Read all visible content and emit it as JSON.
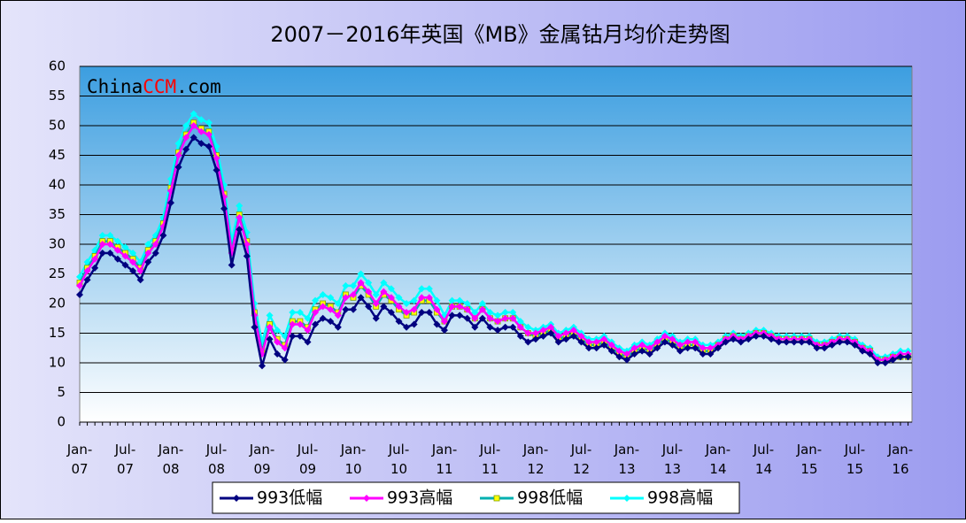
{
  "chart_data": {
    "type": "line",
    "title": "2007－2016年英国《MB》金属钴月均价走势图",
    "watermark": [
      "China",
      "CCM",
      ".com"
    ],
    "categories": [
      "Jan-07",
      null,
      null,
      null,
      null,
      null,
      "Jul-07",
      null,
      null,
      null,
      null,
      null,
      "Jan-08",
      null,
      null,
      null,
      null,
      null,
      "Jul-08",
      null,
      null,
      null,
      null,
      null,
      "Jan-09",
      null,
      null,
      null,
      null,
      null,
      "Jul-09",
      null,
      null,
      null,
      null,
      null,
      "Jan-10",
      null,
      null,
      null,
      null,
      null,
      "Jul-10",
      null,
      null,
      null,
      null,
      null,
      "Jan-11",
      null,
      null,
      null,
      null,
      null,
      "Jul-11",
      null,
      null,
      null,
      null,
      null,
      "Jan-12",
      null,
      null,
      null,
      null,
      null,
      "Jul-12",
      null,
      null,
      null,
      null,
      null,
      "Jan-13",
      null,
      null,
      null,
      null,
      null,
      "Jul-13",
      null,
      null,
      null,
      null,
      null,
      "Jan-14",
      null,
      null,
      null,
      null,
      null,
      "Jul-14",
      null,
      null,
      null,
      null,
      null,
      "Jan-15",
      null,
      null,
      null,
      null,
      null,
      "Jul-15",
      null,
      null,
      null,
      null,
      null,
      "Jan-16",
      null
    ],
    "series": [
      {
        "name": "993低幅",
        "color": "#000080",
        "marker_color": "#000080",
        "values": [
          21.5,
          24,
          26,
          28.5,
          28.5,
          27.5,
          26.5,
          25.5,
          24,
          27,
          28.5,
          31.5,
          37,
          43,
          46,
          48,
          47,
          46.5,
          42.5,
          36,
          26.5,
          32.5,
          28,
          16,
          9.5,
          14,
          11.5,
          10.5,
          14.5,
          14.5,
          13.5,
          16.5,
          17.5,
          17,
          16,
          19,
          19,
          21,
          19.5,
          17.5,
          19.5,
          18.5,
          17,
          16,
          16.5,
          18.5,
          18.5,
          16.5,
          15.5,
          18,
          18,
          17.5,
          16,
          17.5,
          16,
          15.5,
          16,
          16,
          14.5,
          13.5,
          14,
          14.5,
          15,
          13.5,
          14,
          14.5,
          13.5,
          12.5,
          12.5,
          13,
          12,
          11,
          10.5,
          11.5,
          12,
          11.5,
          12.5,
          13.5,
          13,
          12,
          12.5,
          12.5,
          11.5,
          11.5,
          12.5,
          13.5,
          14,
          13.5,
          14,
          14.5,
          14.5,
          14,
          13.5,
          13.5,
          13.5,
          13.5,
          13.5,
          12.5,
          12.5,
          13,
          13.5,
          13.5,
          13,
          12,
          11.5,
          10,
          10,
          10.5,
          11,
          11
        ]
      },
      {
        "name": "993高幅",
        "color": "#ff00ff",
        "marker_color": "#ff00ff",
        "values": [
          23,
          25.5,
          27.5,
          30,
          30,
          29,
          28,
          27,
          25.5,
          28.5,
          30,
          33,
          39,
          45,
          48,
          50,
          49,
          48.5,
          44.5,
          38,
          28.5,
          34.5,
          30,
          18,
          11.5,
          16,
          13.5,
          12.5,
          16.5,
          16.5,
          15.5,
          18.5,
          19.5,
          19,
          18,
          21,
          21.5,
          23.5,
          22,
          20,
          22,
          21,
          19.5,
          18.5,
          19,
          21,
          21,
          19,
          17,
          19.5,
          19.5,
          19,
          17.5,
          19,
          17.5,
          17,
          17.5,
          17.5,
          16,
          15,
          15,
          15.5,
          16,
          14.5,
          15,
          15.5,
          14.5,
          13.5,
          13.5,
          14,
          13,
          12,
          11.5,
          12.5,
          13,
          12.5,
          13.5,
          14.5,
          14,
          13,
          13.5,
          13.5,
          12.5,
          12.5,
          13,
          14,
          14.5,
          14,
          14.5,
          15,
          15,
          14.5,
          14,
          14,
          14,
          14,
          14,
          13,
          13,
          13.5,
          14,
          14,
          13.5,
          12.5,
          12,
          10.5,
          10.5,
          11,
          11.5,
          11.5
        ]
      },
      {
        "name": "998低幅",
        "color": "#00b0b0",
        "marker_color": "#ffff00",
        "values": [
          23.5,
          26,
          28,
          30.5,
          30.5,
          29.5,
          28.5,
          27.5,
          26,
          29,
          30.5,
          33.5,
          39.5,
          45.5,
          48.5,
          50.5,
          49.5,
          49,
          45,
          38.5,
          29,
          35,
          30.5,
          18.5,
          12,
          16.5,
          14,
          13,
          17,
          17,
          16,
          19,
          20,
          19.5,
          18.5,
          21.5,
          21,
          23,
          21.5,
          19.5,
          21.5,
          20.5,
          19,
          18,
          18.5,
          20.5,
          20.5,
          18.5,
          17,
          19.5,
          19.5,
          19,
          17.5,
          19,
          17.5,
          17,
          17.5,
          17.5,
          16,
          15,
          14.5,
          15,
          15.5,
          14,
          14.5,
          15,
          14,
          13,
          13,
          13.5,
          12.5,
          11.5,
          11,
          12,
          12.5,
          12,
          13,
          14,
          13.5,
          12.5,
          13,
          13,
          12,
          12,
          13,
          14,
          14.5,
          14,
          14.5,
          15,
          15,
          14.5,
          14,
          14,
          14,
          14,
          14,
          13,
          13,
          13.5,
          14,
          14,
          13.5,
          12.5,
          12,
          10.5,
          10.5,
          11,
          11,
          11
        ]
      },
      {
        "name": "998高幅",
        "color": "#00ffff",
        "marker_color": "#00ffff",
        "values": [
          24.5,
          27,
          29,
          31.5,
          31.5,
          30.5,
          29.5,
          28.5,
          27,
          30,
          31.5,
          34.5,
          41,
          47,
          50,
          52,
          51,
          50.5,
          46.5,
          40,
          30.5,
          36.5,
          32,
          20,
          13.5,
          18,
          15.5,
          14.5,
          18.5,
          18.5,
          17.5,
          20.5,
          21.5,
          21,
          20,
          23,
          23,
          25,
          23.5,
          21.5,
          23.5,
          22.5,
          21,
          20,
          20.5,
          22.5,
          22.5,
          20.5,
          18,
          20.5,
          20.5,
          20,
          18.5,
          20,
          18.5,
          18,
          18.5,
          18.5,
          17,
          16,
          15.5,
          16,
          16.5,
          15,
          15.5,
          16,
          15,
          14,
          14,
          14.5,
          13.5,
          12.5,
          12,
          13,
          13.5,
          13,
          14,
          15,
          14.5,
          13.5,
          14,
          14,
          13,
          13,
          13.5,
          14.5,
          15,
          14.5,
          15,
          15.5,
          15.5,
          15,
          14.5,
          14.5,
          14.5,
          14.5,
          14.5,
          13.5,
          13.5,
          14,
          14.5,
          14.5,
          14,
          13,
          12.5,
          11,
          11,
          11.5,
          12,
          12
        ]
      }
    ],
    "ylim": [
      0,
      60
    ],
    "yticks": [
      0,
      5,
      10,
      15,
      20,
      25,
      30,
      35,
      40,
      45,
      50,
      55,
      60
    ],
    "grid": true
  }
}
